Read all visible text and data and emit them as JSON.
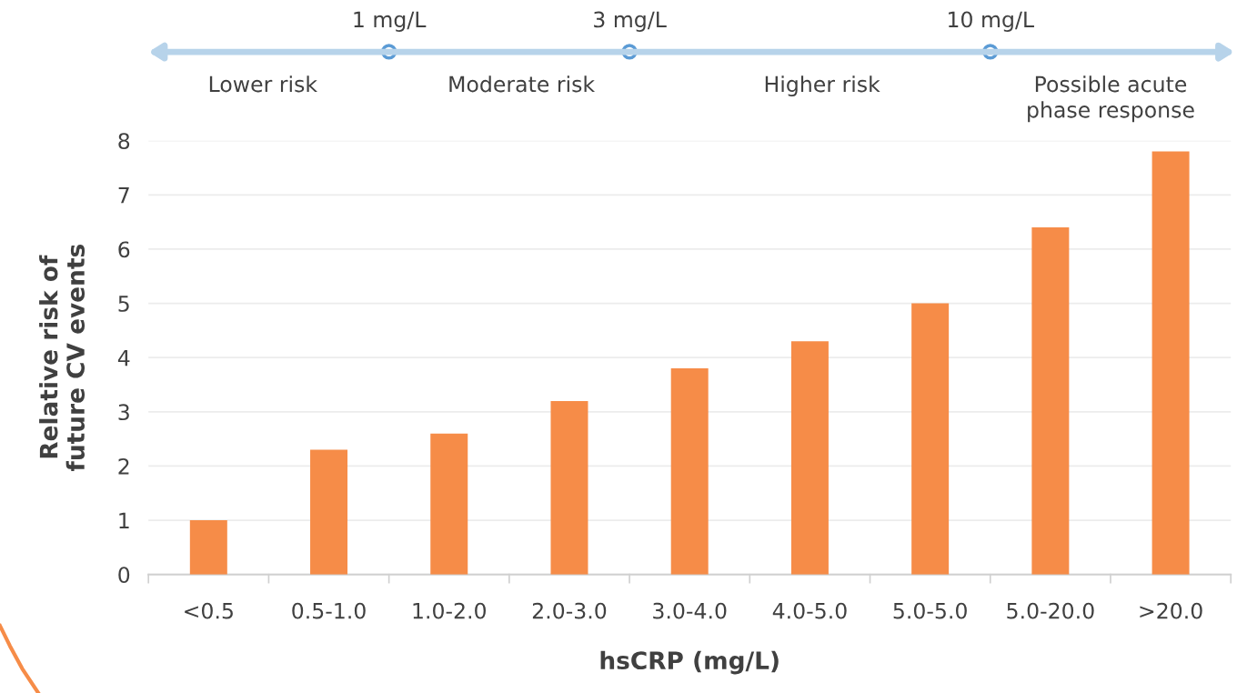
{
  "chart_data": {
    "type": "bar",
    "xlabel": "hsCRP (mg/L)",
    "ylabel": "Relative risk of\nfuture CV events",
    "categories": [
      "<0.5",
      "0.5-1.0",
      "1.0-2.0",
      "2.0-3.0",
      "3.0-4.0",
      "4.0-5.0",
      "5.0-5.0",
      "5.0-20.0",
      ">20.0"
    ],
    "values": [
      1.0,
      2.3,
      2.6,
      3.2,
      3.8,
      4.3,
      5.0,
      6.4,
      7.8
    ],
    "color": "#f68c48",
    "ylim": [
      0,
      8
    ],
    "yticks": [
      0,
      1,
      2,
      3,
      4,
      5,
      6,
      7,
      8
    ],
    "grid": "y",
    "annotations": [
      "1 mg/L",
      "3 mg/L",
      "10 mg/L",
      "Lower risk",
      "Moderate risk",
      "Higher risk",
      "Possible acute\nphase response"
    ]
  }
}
